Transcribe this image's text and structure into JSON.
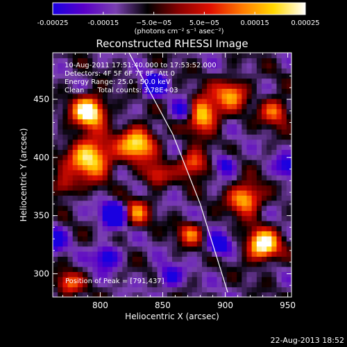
{
  "chart_data": {
    "type": "heatmap",
    "title": "Reconstructed RHESSI Image",
    "xlabel": "Heliocentric X (arcsec)",
    "ylabel": "Heliocentric Y (arcsec)",
    "xlim": [
      762,
      953
    ],
    "ylim": [
      280,
      490
    ],
    "x_ticks": [
      800,
      850,
      900,
      950
    ],
    "x_tick_labels": [
      "800",
      "850",
      "900",
      "950"
    ],
    "y_ticks": [
      300,
      350,
      400,
      450
    ],
    "y_tick_labels": [
      "300",
      "350",
      "400",
      "450"
    ],
    "colorbar": {
      "range": [
        -0.00025,
        0.00025
      ],
      "ticks": [
        -0.00025,
        -0.00015,
        -5e-05,
        5e-05,
        0.00015,
        0.00025
      ],
      "tick_labels": [
        "-0.00025",
        "-0.00015",
        "−5.0e−05",
        "5.0e−05",
        "0.00015",
        "0.00025"
      ],
      "unit": "(photons cm⁻² s⁻¹ asec⁻²)",
      "colors": [
        "#1a00e0",
        "#5a00c8",
        "#7a40b0",
        "#000000",
        "#8a0000",
        "#e01000",
        "#ff7a00",
        "#ffd800",
        "#ffffff"
      ]
    },
    "annotations": {
      "time": "10-Aug-2011 17:51:40.000 to 17:53:52.000",
      "detectors": "Detectors: 4F 5F 6F 7F 8F, Att 0",
      "energy": "Energy Range: 25.0 - 50.0 keV",
      "clean": "Clean      Total counts: 3.78E+03",
      "peak": "Position of Peak = [791,437]"
    },
    "limb_line": [
      [
        822,
        492
      ],
      [
        858,
        420
      ],
      [
        880,
        360
      ],
      [
        902,
        284
      ]
    ],
    "sources": [
      {
        "x": 791,
        "y": 440,
        "a": 1.0,
        "s": 9
      },
      {
        "x": 792,
        "y": 400,
        "a": 0.85,
        "s": 12
      },
      {
        "x": 830,
        "y": 412,
        "a": 0.8,
        "s": 10
      },
      {
        "x": 880,
        "y": 438,
        "a": 0.9,
        "s": 10
      },
      {
        "x": 905,
        "y": 455,
        "a": 0.6,
        "s": 9
      },
      {
        "x": 875,
        "y": 395,
        "a": 0.6,
        "s": 8
      },
      {
        "x": 828,
        "y": 353,
        "a": 0.55,
        "s": 8
      },
      {
        "x": 845,
        "y": 385,
        "a": 0.45,
        "s": 7
      },
      {
        "x": 930,
        "y": 325,
        "a": 0.95,
        "s": 9
      },
      {
        "x": 916,
        "y": 365,
        "a": 0.75,
        "s": 9
      },
      {
        "x": 940,
        "y": 440,
        "a": 0.55,
        "s": 8
      },
      {
        "x": 872,
        "y": 335,
        "a": 0.5,
        "s": 7
      },
      {
        "x": 775,
        "y": 292,
        "a": 0.5,
        "s": 7
      },
      {
        "x": 770,
        "y": 375,
        "a": 0.4,
        "s": 7
      },
      {
        "x": 812,
        "y": 352,
        "a": -0.9,
        "s": 7
      },
      {
        "x": 868,
        "y": 440,
        "a": -0.7,
        "s": 7
      },
      {
        "x": 843,
        "y": 462,
        "a": -0.8,
        "s": 6
      },
      {
        "x": 895,
        "y": 325,
        "a": -0.6,
        "s": 6
      },
      {
        "x": 805,
        "y": 315,
        "a": -0.5,
        "s": 7
      },
      {
        "x": 760,
        "y": 330,
        "a": -0.5,
        "s": 8
      },
      {
        "x": 900,
        "y": 395,
        "a": -0.4,
        "s": 6
      },
      {
        "x": 950,
        "y": 392,
        "a": -0.4,
        "s": 7
      },
      {
        "x": 855,
        "y": 298,
        "a": -0.4,
        "s": 7
      }
    ],
    "base_level": -0.4
  },
  "footer": {
    "date": "22-Aug-2013 18:52"
  }
}
